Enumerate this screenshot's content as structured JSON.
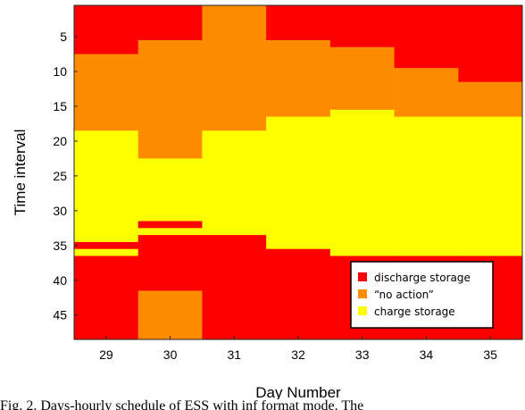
{
  "chart_data": {
    "type": "heatmap",
    "title": "",
    "xlabel": "Day Number",
    "ylabel": "Time interval",
    "x": [
      29,
      30,
      31,
      32,
      33,
      34,
      35
    ],
    "xlim": [
      28.5,
      35.5
    ],
    "ylim": [
      48.5,
      0.5
    ],
    "y_direction": "reversed",
    "yticks": [
      5,
      10,
      15,
      20,
      25,
      30,
      35,
      40,
      45
    ],
    "legend_position": "bottom-right",
    "categories": [
      {
        "code": 0,
        "label": "discharge storage",
        "color": "#ff0000"
      },
      {
        "code": 1,
        "label": "“no action”",
        "color": "#ff8c00"
      },
      {
        "code": 2,
        "label": "charge storage",
        "color": "#ffff00"
      }
    ],
    "series": [
      {
        "day": 29,
        "runs": [
          [
            1,
            7,
            0
          ],
          [
            8,
            18,
            1
          ],
          [
            19,
            34,
            2
          ],
          [
            35,
            35,
            0
          ],
          [
            36,
            36,
            2
          ],
          [
            37,
            48,
            0
          ]
        ]
      },
      {
        "day": 30,
        "runs": [
          [
            1,
            5,
            0
          ],
          [
            6,
            22,
            1
          ],
          [
            23,
            31,
            2
          ],
          [
            32,
            32,
            0
          ],
          [
            33,
            33,
            2
          ],
          [
            34,
            41,
            0
          ],
          [
            42,
            48,
            1
          ]
        ]
      },
      {
        "day": 31,
        "runs": [
          [
            1,
            18,
            1
          ],
          [
            19,
            33,
            2
          ],
          [
            34,
            48,
            0
          ]
        ]
      },
      {
        "day": 32,
        "runs": [
          [
            1,
            5,
            0
          ],
          [
            6,
            16,
            1
          ],
          [
            17,
            35,
            2
          ],
          [
            36,
            48,
            0
          ]
        ]
      },
      {
        "day": 33,
        "runs": [
          [
            1,
            6,
            0
          ],
          [
            7,
            15,
            1
          ],
          [
            16,
            36,
            2
          ],
          [
            37,
            48,
            0
          ]
        ]
      },
      {
        "day": 34,
        "runs": [
          [
            1,
            9,
            0
          ],
          [
            10,
            16,
            1
          ],
          [
            17,
            36,
            2
          ],
          [
            37,
            48,
            0
          ]
        ]
      },
      {
        "day": 35,
        "runs": [
          [
            1,
            11,
            0
          ],
          [
            12,
            16,
            1
          ],
          [
            17,
            36,
            2
          ],
          [
            37,
            48,
            0
          ]
        ]
      }
    ]
  },
  "caption": "Fig. 2.  Days-hourly schedule of ESS with inf format mode. The"
}
